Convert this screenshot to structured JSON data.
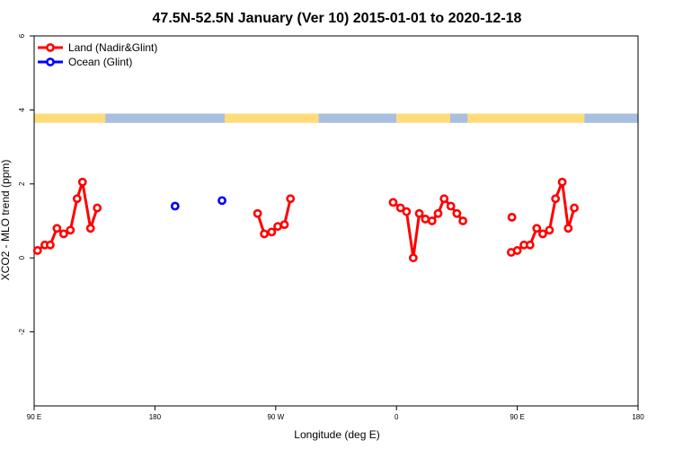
{
  "chart_data": {
    "type": "line",
    "title": "47.5N-52.5N January (Ver 10)   2015-01-01 to 2020-12-18",
    "xlabel": "Longitude (deg E)",
    "ylabel": "XCO2 - MLO trend (ppm)",
    "x_ticks": [
      {
        "value": 90,
        "label": "90 E"
      },
      {
        "value": 180,
        "label": "180"
      },
      {
        "value": 270,
        "label": "90 W"
      },
      {
        "value": 360,
        "label": "0"
      },
      {
        "value": 450,
        "label": "90 E"
      },
      {
        "value": 540,
        "label": "180"
      }
    ],
    "y_ticks": [
      {
        "value": -2,
        "label": "-2"
      },
      {
        "value": 0,
        "label": "0"
      },
      {
        "value": 2,
        "label": "2"
      },
      {
        "value": 4,
        "label": "4"
      },
      {
        "value": 6,
        "label": "6"
      }
    ],
    "xlim": [
      90,
      540
    ],
    "ylim": [
      -4,
      6
    ],
    "legend": "top-left",
    "land_ocean_band": {
      "y_range": [
        3.65,
        3.9
      ],
      "land_color": "#ffdb7a",
      "ocean_color": "#a8bfe0",
      "segments": [
        {
          "from": 90,
          "to": 143,
          "type": "land"
        },
        {
          "from": 143,
          "to": 232,
          "type": "ocean"
        },
        {
          "from": 232,
          "to": 302,
          "type": "land"
        },
        {
          "from": 302,
          "to": 360,
          "type": "ocean"
        },
        {
          "from": 360,
          "to": 400,
          "type": "land"
        },
        {
          "from": 400,
          "to": 413,
          "type": "ocean"
        },
        {
          "from": 413,
          "to": 500,
          "type": "land"
        },
        {
          "from": 500,
          "to": 540,
          "type": "ocean"
        }
      ]
    },
    "series": [
      {
        "name": "Land (Nadir&Glint)",
        "color": "#ff0000",
        "segments": [
          [
            [
              92.5,
              0.2
            ],
            [
              98,
              0.35
            ],
            [
              102,
              0.35
            ],
            [
              107,
              0.8
            ],
            [
              112,
              0.65
            ],
            [
              117,
              0.75
            ],
            [
              122,
              1.6
            ],
            [
              126,
              2.05
            ],
            [
              132,
              0.8
            ],
            [
              137,
              1.35
            ]
          ],
          [
            [
              256.5,
              1.2
            ],
            [
              261.5,
              0.65
            ],
            [
              267,
              0.7
            ],
            [
              271.5,
              0.85
            ],
            [
              276.5,
              0.9
            ],
            [
              281,
              1.6
            ]
          ],
          [
            [
              357.5,
              1.5
            ],
            [
              363,
              1.35
            ],
            [
              367.5,
              1.25
            ],
            [
              372.5,
              0.0
            ],
            [
              377,
              1.2
            ],
            [
              381.5,
              1.05
            ],
            [
              386.5,
              1.0
            ],
            [
              391,
              1.2
            ],
            [
              395.5,
              1.6
            ],
            [
              400.5,
              1.4
            ],
            [
              405,
              1.2
            ],
            [
              409.5,
              1.0
            ]
          ],
          [
            [
              446,
              1.1
            ]
          ],
          [
            [
              445.5,
              0.15
            ],
            [
              450,
              0.2
            ],
            [
              455,
              0.35
            ],
            [
              459.5,
              0.35
            ],
            [
              464.5,
              0.8
            ],
            [
              469,
              0.65
            ],
            [
              474,
              0.75
            ],
            [
              478.5,
              1.6
            ],
            [
              483.5,
              2.05
            ],
            [
              488,
              0.8
            ],
            [
              492.5,
              1.35
            ]
          ]
        ]
      },
      {
        "name": "Ocean (Glint)",
        "color": "#0000ff",
        "segments": [
          [
            [
              195,
              1.4
            ]
          ],
          [
            [
              230,
              1.55
            ]
          ]
        ]
      }
    ]
  }
}
